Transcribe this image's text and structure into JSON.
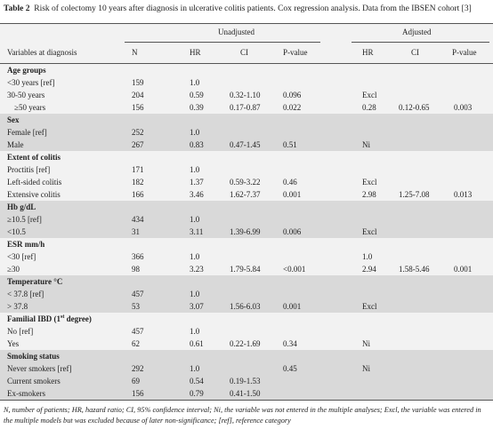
{
  "header": {
    "label": "Table 2",
    "title": "Risk of colectomy 10 years after diagnosis in ulcerative colitis patients. Cox regression analysis. Data from the IBSEN cohort [3]"
  },
  "table": {
    "spanners": [
      "Unadjusted",
      "Adjusted"
    ],
    "columns": [
      "Variables at diagnosis",
      "N",
      "HR",
      "CI",
      "P-value",
      "HR",
      "CI",
      "P-value"
    ],
    "groups": [
      {
        "title": [
          "Age groups"
        ],
        "rows": [
          [
            "<30 years [ref]",
            "159",
            "1.0",
            null,
            null,
            null,
            null,
            null
          ],
          [
            "30-50 years",
            "204",
            "0.59",
            "0.32-1.10",
            "0.096",
            "Excl",
            null,
            null
          ],
          [
            "≥50 years",
            "156",
            "0.39",
            "0.17-0.87",
            "0.022",
            "0.28",
            "0.12-0.65",
            "0.003"
          ]
        ]
      },
      {
        "title": [
          "Sex"
        ],
        "rows": [
          [
            "Female [ref]",
            "252",
            "1.0",
            null,
            null,
            null,
            null,
            null
          ],
          [
            "Male",
            "267",
            "0.83",
            "0.47-1.45",
            "0.51",
            "Ni",
            null,
            null
          ]
        ]
      },
      {
        "title": [
          "Extent of colitis"
        ],
        "rows": [
          [
            "Proctitis [ref]",
            "171",
            "1.0",
            null,
            null,
            null,
            null,
            null
          ],
          [
            "Left-sided colitis",
            "182",
            "1.37",
            "0.59-3.22",
            "0.46",
            "Excl",
            null,
            null
          ],
          [
            "Extensive colitis",
            "166",
            "3.46",
            "1.62-7.37",
            "0.001",
            "2.98",
            "1.25-7.08",
            "0.013"
          ]
        ]
      },
      {
        "title": [
          "Hb g/dL"
        ],
        "rows": [
          [
            "≥10.5 [ref]",
            "434",
            "1.0",
            null,
            null,
            null,
            null,
            null
          ],
          [
            "<10.5",
            "31",
            "3.11",
            "1.39-6.99",
            "0.006",
            "Excl",
            null,
            null
          ]
        ]
      },
      {
        "title": [
          "ESR mm/h"
        ],
        "rows": [
          [
            "<30 [ref]",
            "366",
            "1.0",
            null,
            null,
            "1.0",
            null,
            null
          ],
          [
            "≥30",
            "98",
            "3.23",
            "1.79-5.84",
            "<0.001",
            "2.94",
            "1.58-5.46",
            "0.001"
          ]
        ]
      },
      {
        "title": [
          "Temperature °C"
        ],
        "rows": [
          [
            "< 37.8 [ref]",
            "457",
            "1.0",
            null,
            null,
            null,
            null,
            null
          ],
          [
            "> 37.8",
            "53",
            "3.07",
            "1.56-6.03",
            "0.001",
            "Excl",
            null,
            null
          ]
        ]
      },
      {
        "title": [
          "Familial IBD (1",
          "st",
          " degree)"
        ],
        "rows": [
          [
            "No [ref]",
            "457",
            "1.0",
            null,
            null,
            null,
            null,
            null
          ],
          [
            "Yes",
            "62",
            "0.61",
            "0.22-1.69",
            "0.34",
            "Ni",
            null,
            null
          ]
        ]
      },
      {
        "title": [
          "Smoking status"
        ],
        "rows": [
          [
            "Never smokers [ref]",
            "292",
            "1.0",
            null,
            "0.45",
            "Ni",
            null,
            null
          ],
          [
            "Current smokers",
            "69",
            "0.54",
            "0.19-1.53",
            null,
            null,
            null,
            null
          ],
          [
            "Ex-smokers",
            "156",
            "0.79",
            "0.41-1.50",
            null,
            null,
            null,
            null
          ]
        ]
      }
    ]
  },
  "footnote": "N, number of patients; HR, hazard ratio; CI, 95% confidence interval; Ni, the variable was not entered in the multiple analyses; Excl, the variable was entered in the multiple models but was excluded because of later non-significance; [ref], reference category"
}
